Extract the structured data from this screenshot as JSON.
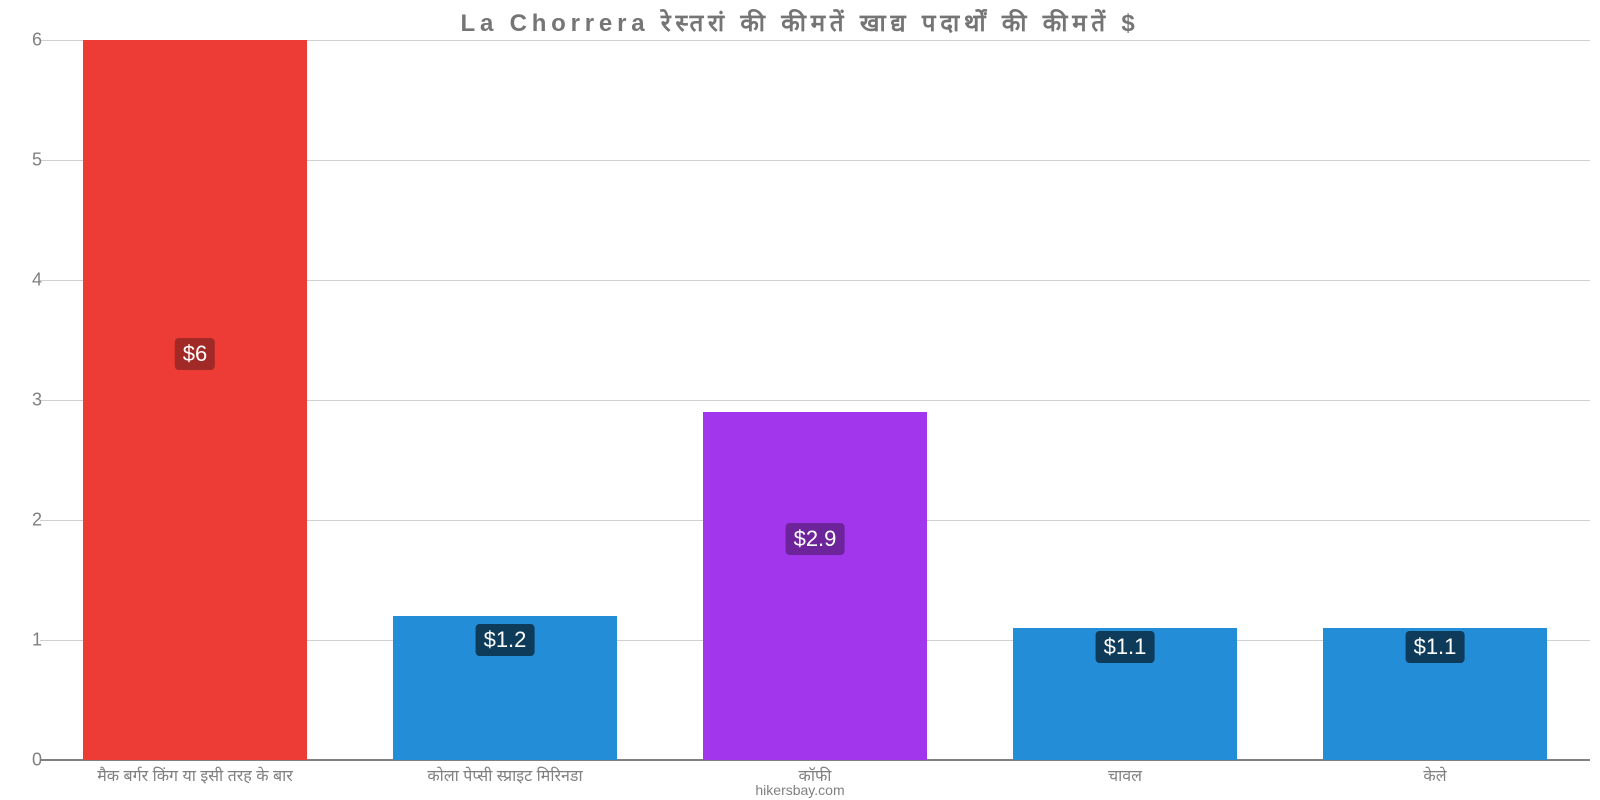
{
  "chart": {
    "type": "bar",
    "title": "La Chorrera रेस्तरां की कीमतें खाद्य पदार्थों की कीमतें $",
    "title_fontsize": 24,
    "title_color": "#757575",
    "attribution": "hikersbay.com",
    "attribution_color": "#808080",
    "attribution_fontsize": 14,
    "background_color": "#ffffff",
    "grid_color": "#d0d0d0",
    "axis_color": "#808080",
    "ylim": [
      0,
      6
    ],
    "ytick_step": 1,
    "yticks": [
      "0",
      "1",
      "2",
      "3",
      "4",
      "5",
      "6"
    ],
    "ytick_fontsize": 18,
    "xlabel_fontsize": 16,
    "bar_width_ratio": 0.72,
    "categories": [
      "मैक बर्गर किंग या इसी तरह के बार",
      "कोला पेप्सी स्प्राइट मिरिनडा",
      "कॉफी",
      "चावल",
      "केले"
    ],
    "values": [
      6,
      1.2,
      2.9,
      1.1,
      1.1
    ],
    "value_labels": [
      "$6",
      "$1.2",
      "$2.9",
      "$1.1",
      "$1.1"
    ],
    "bar_colors": [
      "#ec3c35",
      "#248dd7",
      "#a236ec",
      "#248dd7",
      "#248dd7"
    ],
    "value_label_bg_colors": [
      "#a12a26",
      "#0f3b5a",
      "#6d249a",
      "#0f3b5a",
      "#0f3b5a"
    ],
    "value_label_text_color": "#ffffff",
    "value_label_fontsize": 22,
    "value_label_y_positions": [
      3.38,
      1.0,
      1.84,
      0.94,
      0.94
    ]
  }
}
